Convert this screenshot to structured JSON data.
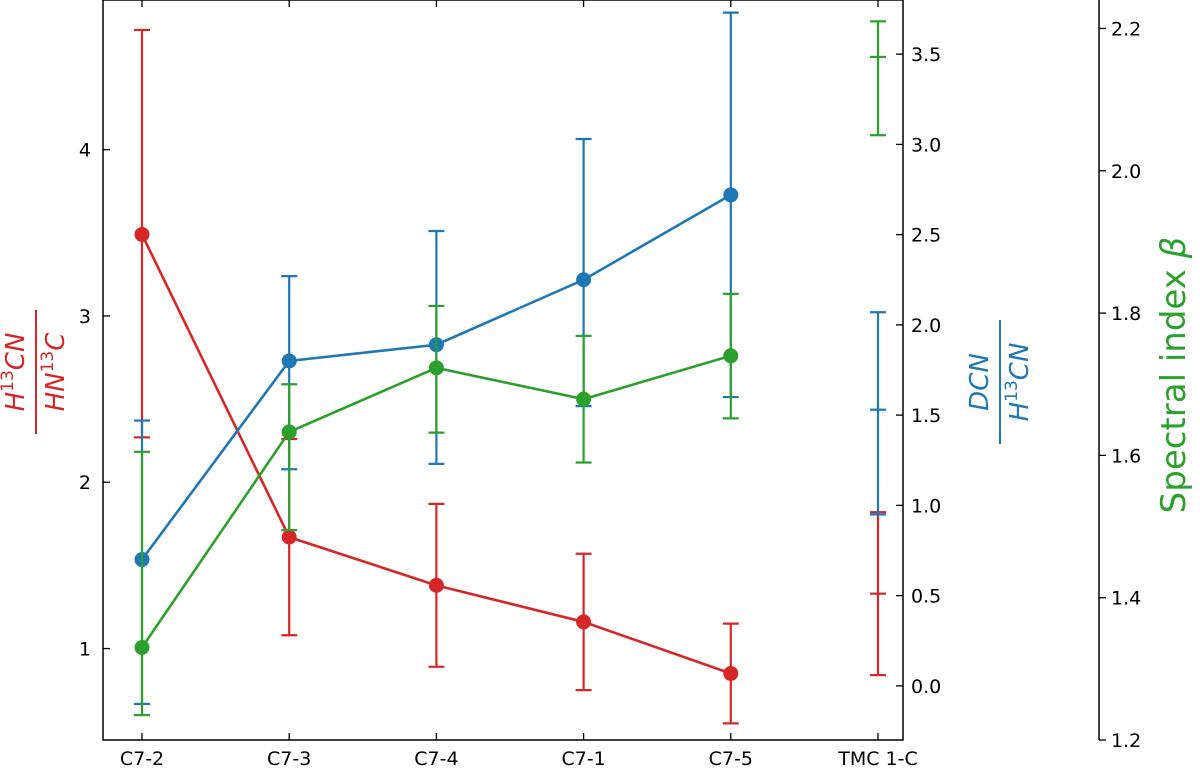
{
  "chart_data": {
    "type": "line",
    "categories": [
      "C7-2",
      "C7-3",
      "C7-4",
      "C7-1",
      "C7-5",
      "TMC 1-C"
    ],
    "axes": {
      "left": {
        "label": {
          "main": "H",
          "sup": "13",
          "rest": "CN",
          "den_main": "HN",
          "den_sup": "13",
          "den_rest": "C"
        },
        "color": "#d62728",
        "ylim": [
          0.45,
          4.9
        ],
        "ticks": [
          1,
          2,
          3,
          4
        ]
      },
      "right1": {
        "label": {
          "main": "DCN",
          "den_main": "H",
          "den_sup": "13",
          "den_rest": "CN"
        },
        "color": "#1f77b4",
        "ylim": [
          -0.3,
          3.8
        ],
        "ticks": [
          "0.0",
          "0.5",
          "1.0",
          "1.5",
          "2.0",
          "2.5",
          "3.0",
          "3.5"
        ]
      },
      "right2": {
        "label": "Spectral index β",
        "color": "#2ca02c",
        "ylim": [
          1.2,
          2.24
        ],
        "ticks": [
          "1.2",
          "1.4",
          "1.6",
          "1.8",
          "2.0",
          "2.2"
        ]
      }
    },
    "series": [
      {
        "axis": "left",
        "color": "#d62728",
        "points": [
          {
            "x": 0,
            "y": 3.49,
            "lo": 2.27,
            "hi": 4.72
          },
          {
            "x": 1,
            "y": 1.67,
            "lo": 1.08,
            "hi": 2.26
          },
          {
            "x": 2,
            "y": 1.38,
            "lo": 0.89,
            "hi": 1.87
          },
          {
            "x": 3,
            "y": 1.16,
            "lo": 0.75,
            "hi": 1.57
          },
          {
            "x": 4,
            "y": 0.85,
            "lo": 0.55,
            "hi": 1.15
          },
          {
            "x": 5,
            "y": null,
            "lo": 0.84,
            "hi": 1.82,
            "mid_tick": 1.33
          }
        ]
      },
      {
        "axis": "right1",
        "color": "#1f77b4",
        "points": [
          {
            "x": 0,
            "y": 0.7,
            "lo": -0.1,
            "hi": 1.47
          },
          {
            "x": 1,
            "y": 1.8,
            "lo": 1.2,
            "hi": 2.27
          },
          {
            "x": 2,
            "y": 1.89,
            "lo": 1.23,
            "hi": 2.52
          },
          {
            "x": 3,
            "y": 2.25,
            "lo": 1.55,
            "hi": 3.03
          },
          {
            "x": 4,
            "y": 2.72,
            "lo": 1.6,
            "hi": 3.73
          },
          {
            "x": 5,
            "y": null,
            "lo": 0.95,
            "hi": 2.07,
            "mid_tick": 1.53
          }
        ]
      },
      {
        "axis": "right2",
        "color": "#2ca02c",
        "points": [
          {
            "x": 0,
            "y": 1.33,
            "lo": 1.235,
            "hi": 1.605
          },
          {
            "x": 1,
            "y": 1.633,
            "lo": 1.495,
            "hi": 1.7
          },
          {
            "x": 2,
            "y": 1.723,
            "lo": 1.632,
            "hi": 1.81
          },
          {
            "x": 3,
            "y": 1.679,
            "lo": 1.59,
            "hi": 1.768
          },
          {
            "x": 4,
            "y": 1.74,
            "lo": 1.652,
            "hi": 1.827
          },
          {
            "x": 5,
            "y": null,
            "lo": 2.05,
            "hi": 2.21,
            "mid_tick": 2.16
          }
        ]
      }
    ],
    "grid": false
  }
}
